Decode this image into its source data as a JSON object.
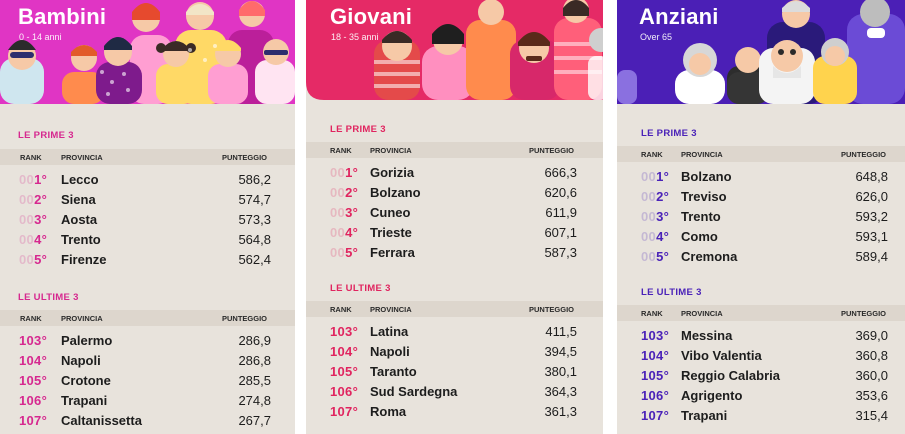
{
  "panels": [
    {
      "title": "Bambini",
      "subtitle": "0 - 14 anni",
      "accent": "#d6288f",
      "top_label": "LE PRIME 3",
      "bottom_label": "LE ULTIME 3",
      "headers": {
        "rank": "RANK",
        "province": "PROVINCIA",
        "score": "PUNTEGGIO"
      },
      "top": [
        {
          "pad": "00",
          "rank": "1°",
          "province": "Lecco",
          "score": "586,2"
        },
        {
          "pad": "00",
          "rank": "2°",
          "province": "Siena",
          "score": "574,7"
        },
        {
          "pad": "00",
          "rank": "3°",
          "province": "Aosta",
          "score": "573,3"
        },
        {
          "pad": "00",
          "rank": "4°",
          "province": "Trento",
          "score": "564,8"
        },
        {
          "pad": "00",
          "rank": "5°",
          "province": "Firenze",
          "score": "562,4"
        }
      ],
      "bottom": [
        {
          "rank": "103°",
          "province": "Palermo",
          "score": "286,9"
        },
        {
          "rank": "104°",
          "province": "Napoli",
          "score": "286,8"
        },
        {
          "rank": "105°",
          "province": "Crotone",
          "score": "285,5"
        },
        {
          "rank": "106°",
          "province": "Trapani",
          "score": "274,8"
        },
        {
          "rank": "107°",
          "province": "Caltanissetta",
          "score": "267,7"
        }
      ]
    },
    {
      "title": "Giovani",
      "subtitle": "18 - 35 anni",
      "accent": "#e0245f",
      "top_label": "LE PRIME 3",
      "bottom_label": "LE ULTIME 3",
      "headers": {
        "rank": "RANK",
        "province": "PROVINCIA",
        "score": "PUNTEGGIO"
      },
      "top": [
        {
          "pad": "00",
          "rank": "1°",
          "province": "Gorizia",
          "score": "666,3"
        },
        {
          "pad": "00",
          "rank": "2°",
          "province": "Bolzano",
          "score": "620,6"
        },
        {
          "pad": "00",
          "rank": "3°",
          "province": "Cuneo",
          "score": "611,9"
        },
        {
          "pad": "00",
          "rank": "4°",
          "province": "Trieste",
          "score": "607,1"
        },
        {
          "pad": "00",
          "rank": "5°",
          "province": "Ferrara",
          "score": "587,3"
        }
      ],
      "bottom": [
        {
          "rank": "103°",
          "province": "Latina",
          "score": "411,5"
        },
        {
          "rank": "104°",
          "province": "Napoli",
          "score": "394,5"
        },
        {
          "rank": "105°",
          "province": "Taranto",
          "score": "380,1"
        },
        {
          "rank": "106°",
          "province": "Sud Sardegna",
          "score": "364,3"
        },
        {
          "rank": "107°",
          "province": "Roma",
          "score": "361,3"
        }
      ]
    },
    {
      "title": "Anziani",
      "subtitle": "Over 65",
      "accent": "#4a22b8",
      "top_label": "LE PRIME 3",
      "bottom_label": "LE ULTIME 3",
      "headers": {
        "rank": "RANK",
        "province": "PROVINCIA",
        "score": "PUNTEGGIO"
      },
      "top": [
        {
          "pad": "00",
          "rank": "1°",
          "province": "Bolzano",
          "score": "648,8"
        },
        {
          "pad": "00",
          "rank": "2°",
          "province": "Treviso",
          "score": "626,0"
        },
        {
          "pad": "00",
          "rank": "3°",
          "province": "Trento",
          "score": "593,2"
        },
        {
          "pad": "00",
          "rank": "4°",
          "province": "Como",
          "score": "593,1"
        },
        {
          "pad": "00",
          "rank": "5°",
          "province": "Cremona",
          "score": "589,4"
        }
      ],
      "bottom": [
        {
          "rank": "103°",
          "province": "Messina",
          "score": "369,0"
        },
        {
          "rank": "104°",
          "province": "Vibo Valentia",
          "score": "360,8"
        },
        {
          "rank": "105°",
          "province": "Reggio Calabria",
          "score": "360,0"
        },
        {
          "rank": "106°",
          "province": "Agrigento",
          "score": "353,6"
        },
        {
          "rank": "107°",
          "province": "Trapani",
          "score": "315,4"
        }
      ]
    }
  ]
}
